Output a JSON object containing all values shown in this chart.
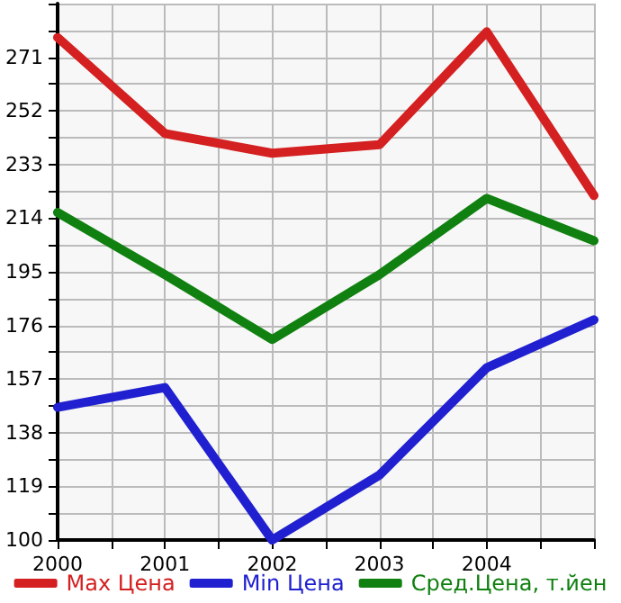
{
  "chart_data": {
    "type": "line",
    "x": [
      2000,
      2001,
      2002,
      2003,
      2004,
      2005
    ],
    "series": [
      {
        "name": "Max Цена",
        "color": "#d42020",
        "values": [
          278,
          244,
          237,
          240,
          280,
          222
        ]
      },
      {
        "name": "Min Цена",
        "color": "#2020d0",
        "values": [
          147,
          154,
          100,
          123,
          161,
          178
        ]
      },
      {
        "name": "Сред.Цена, т.йен",
        "color": "#108010",
        "values": [
          216,
          194,
          171,
          194,
          221,
          206
        ]
      }
    ],
    "xlim": [
      2000,
      2005
    ],
    "xticks": [
      2000,
      {
        "value": 2000.5,
        "label": null
      },
      2001,
      {
        "value": 2001.5,
        "label": null
      },
      2002,
      {
        "value": 2002.5,
        "label": null
      },
      2003,
      {
        "value": 2003.5,
        "label": null
      },
      2004,
      {
        "value": 2004.5,
        "label": null
      },
      {
        "value": 2005,
        "label": null
      }
    ],
    "ylim": [
      100,
      290
    ],
    "yticks": [
      100,
      {
        "value": 109.5,
        "label": null
      },
      119,
      {
        "value": 128.5,
        "label": null
      },
      138,
      {
        "value": 147.5,
        "label": null
      },
      157,
      {
        "value": 166.5,
        "label": null
      },
      176,
      {
        "value": 185.5,
        "label": null
      },
      195,
      {
        "value": 204.5,
        "label": null
      },
      214,
      {
        "value": 223.5,
        "label": null
      },
      233,
      {
        "value": 242.5,
        "label": null
      },
      252,
      {
        "value": 261.5,
        "label": null
      },
      271,
      {
        "value": 280.5,
        "label": null
      },
      {
        "value": 290,
        "label": null
      }
    ],
    "grid": true,
    "legend": "bottom",
    "marker": "none",
    "line_style": "solid"
  }
}
